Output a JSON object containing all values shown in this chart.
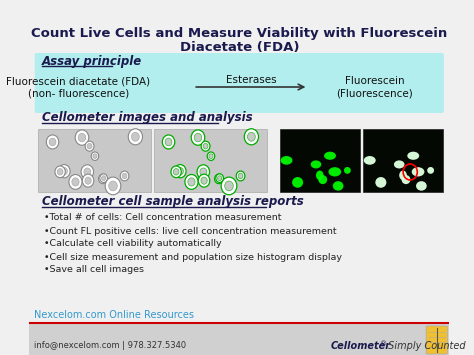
{
  "title_line1": "Count Live Cells and Measure Viability with Fluorescein",
  "title_line2": "Diacetate (FDA)",
  "bg_color": "#f0f0f0",
  "title_color": "#1a1a4e",
  "section1_title": "Assay principle",
  "section1_bg": "#b2eeee",
  "assay_arrow_label": "Esterases",
  "section2_title": "Cellometer images and analysis",
  "section3_title": "Cellometer cell sample analysis reports",
  "bullet_points": [
    "•Total # of cells: Cell concentration measurement",
    "•Count FL positive cells: live cell concentration measurement",
    "•Calculate cell viability automatically",
    "•Cell size measurement and population size histogram display",
    "•Save all cell images"
  ],
  "footer_left1": "Nexcelom.com Online Resources",
  "footer_left2": "info@nexcelom.com | 978.327.5340",
  "footer_line_color": "#cc0000",
  "footer_bg": "#d0d0d0",
  "section_title_color": "#1a1a4e",
  "bullet_color": "#222222",
  "footer_text_color_left1": "#3399cc",
  "footer_text_color_left2": "#333333"
}
